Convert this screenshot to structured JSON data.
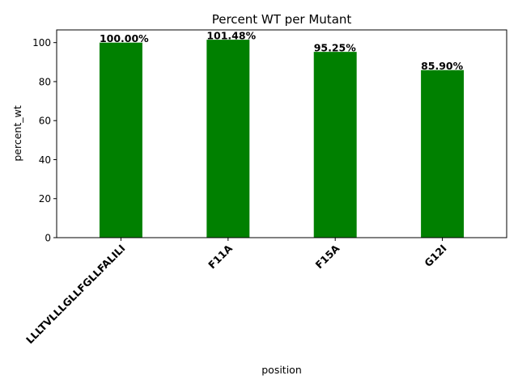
{
  "chart_data": {
    "type": "bar",
    "title": "Percent WT per Mutant",
    "xlabel": "position",
    "ylabel": "percent_wt",
    "categories": [
      "LLLTVLLLGLLFGLLFALILI",
      "F11A",
      "F15A",
      "G12I"
    ],
    "values": [
      100.0,
      101.48,
      95.25,
      85.9
    ],
    "data_labels": [
      "100.00%",
      "101.48%",
      "95.25%",
      "85.90%"
    ],
    "ylim": [
      0,
      106.5
    ],
    "yticks": [
      0,
      20,
      40,
      60,
      80,
      100
    ],
    "bar_color": "#008000",
    "grid": false
  }
}
